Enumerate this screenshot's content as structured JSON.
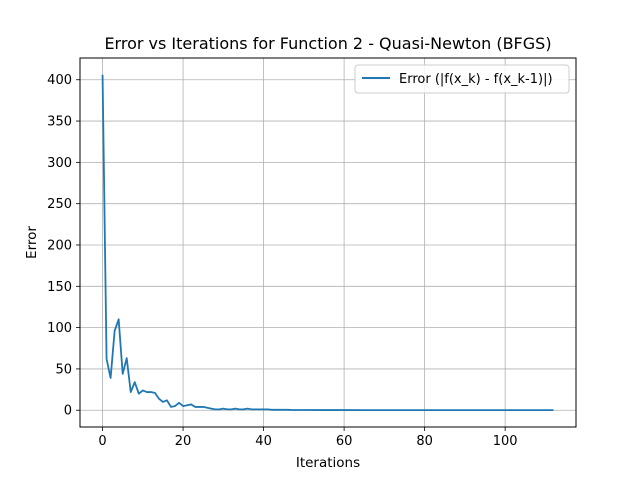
{
  "chart_data": {
    "type": "line",
    "title": "Error vs Iterations for Function 2 - Quasi-Newton (BFGS)",
    "xlabel": "Iterations",
    "ylabel": "Error",
    "xlim": [
      -5.6,
      117.6
    ],
    "ylim": [
      -20.3,
      426.3
    ],
    "xticks": [
      0,
      20,
      40,
      60,
      80,
      100
    ],
    "yticks": [
      0,
      50,
      100,
      150,
      200,
      250,
      300,
      350,
      400
    ],
    "grid": true,
    "legend_position": "top-right",
    "series": [
      {
        "name": "Error (|f(x_k) - f(x_k-1)|)",
        "color": "#1f77b4",
        "x": [
          0,
          1,
          2,
          3,
          4,
          5,
          6,
          7,
          8,
          9,
          10,
          11,
          12,
          13,
          14,
          15,
          16,
          17,
          18,
          19,
          20,
          21,
          22,
          23,
          24,
          25,
          26,
          27,
          28,
          29,
          30,
          31,
          32,
          33,
          34,
          35,
          36,
          37,
          38,
          39,
          40,
          41,
          42,
          43,
          44,
          45,
          46,
          47,
          48,
          49,
          50,
          55,
          60,
          65,
          70,
          75,
          80,
          85,
          90,
          95,
          100,
          105,
          110,
          112
        ],
        "y": [
          406,
          62,
          39,
          96,
          110,
          44,
          63,
          22,
          34,
          20,
          24,
          22,
          22,
          21,
          14,
          10,
          12,
          4,
          5,
          9,
          5,
          6,
          7,
          4,
          4,
          4,
          3,
          2,
          1,
          1,
          2,
          1,
          1,
          2,
          1,
          1,
          2,
          1,
          1,
          1,
          1,
          1,
          0.5,
          0.5,
          0.5,
          0.5,
          0.5,
          0.3,
          0.3,
          0.3,
          0.3,
          0.2,
          0.2,
          0.1,
          0.1,
          0.1,
          0.1,
          0.1,
          0.1,
          0.1,
          0.1,
          0.1,
          0.1,
          0.1
        ]
      }
    ]
  }
}
